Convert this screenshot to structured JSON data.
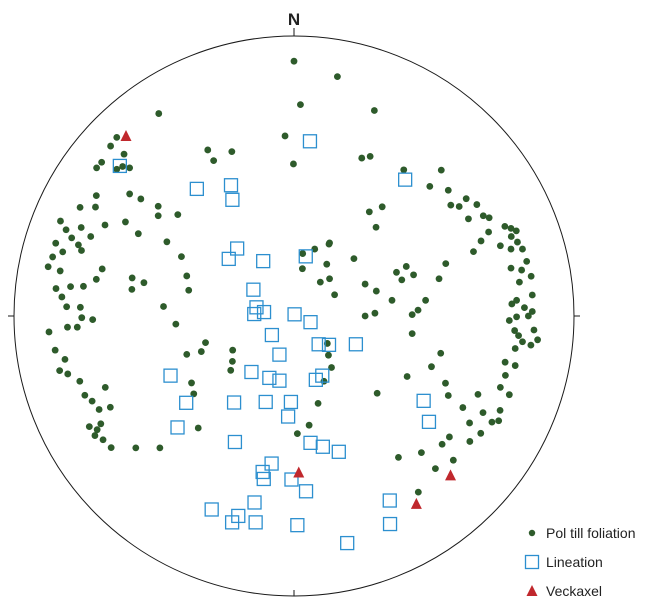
{
  "chart_data": {
    "type": "scatter",
    "title": "",
    "north_label": "N",
    "projection": "equal-area lower hemisphere stereonet",
    "coordinate_note": "x = east, y = north, both normalized to primitive circle radius 1",
    "xlim": [
      -1,
      1
    ],
    "ylim": [
      -1,
      1
    ],
    "grid": false,
    "legend_position": "bottom-right",
    "series": [
      {
        "name": "Pol till foliation",
        "marker": "filled-circle",
        "color": "#2e5b2b",
        "points": [
          [
            0.0,
            0.91
          ],
          [
            0.155,
            0.855
          ],
          [
            0.287,
            0.734
          ],
          [
            0.272,
            0.57
          ],
          [
            0.023,
            0.755
          ],
          [
            -0.032,
            0.643
          ],
          [
            -0.483,
            0.723
          ],
          [
            -0.633,
            0.638
          ],
          [
            -0.655,
            0.607
          ],
          [
            -0.607,
            0.578
          ],
          [
            -0.687,
            0.549
          ],
          [
            -0.705,
            0.529
          ],
          [
            -0.633,
            0.524
          ],
          [
            -0.308,
            0.593
          ],
          [
            -0.222,
            0.587
          ],
          [
            -0.287,
            0.555
          ],
          [
            -0.002,
            0.543
          ],
          [
            0.242,
            0.564
          ],
          [
            0.392,
            0.522
          ],
          [
            0.526,
            0.521
          ],
          [
            0.485,
            0.463
          ],
          [
            0.551,
            0.449
          ],
          [
            0.56,
            0.396
          ],
          [
            0.59,
            0.391
          ],
          [
            0.615,
            0.419
          ],
          [
            0.623,
            0.347
          ],
          [
            0.653,
            0.398
          ],
          [
            0.676,
            0.358
          ],
          [
            0.697,
            0.351
          ],
          [
            0.695,
            0.3
          ],
          [
            0.753,
            0.32
          ],
          [
            0.775,
            0.313
          ],
          [
            0.794,
            0.304
          ],
          [
            0.737,
            0.251
          ],
          [
            0.668,
            0.268
          ],
          [
            0.641,
            0.23
          ],
          [
            0.776,
            0.284
          ],
          [
            0.798,
            0.264
          ],
          [
            0.775,
            0.239
          ],
          [
            0.816,
            0.239
          ],
          [
            0.831,
            0.195
          ],
          [
            0.813,
            0.164
          ],
          [
            0.775,
            0.171
          ],
          [
            0.847,
            0.142
          ],
          [
            0.805,
            0.121
          ],
          [
            0.851,
            0.075
          ],
          [
            0.795,
            0.056
          ],
          [
            0.823,
            0.03
          ],
          [
            0.851,
            0.016
          ],
          [
            0.837,
            0.0
          ],
          [
            0.778,
            0.043
          ],
          [
            0.795,
            -0.003
          ],
          [
            0.769,
            -0.016
          ],
          [
            0.788,
            -0.052
          ],
          [
            0.802,
            -0.07
          ],
          [
            0.857,
            -0.05
          ],
          [
            0.87,
            -0.085
          ],
          [
            0.816,
            -0.092
          ],
          [
            0.846,
            -0.104
          ],
          [
            0.79,
            -0.116
          ],
          [
            0.754,
            -0.165
          ],
          [
            0.79,
            -0.177
          ],
          [
            0.755,
            -0.212
          ],
          [
            0.737,
            -0.255
          ],
          [
            0.769,
            -0.281
          ],
          [
            0.736,
            -0.337
          ],
          [
            0.731,
            -0.374
          ],
          [
            0.707,
            -0.379
          ],
          [
            0.627,
            -0.382
          ],
          [
            0.675,
            -0.345
          ],
          [
            0.657,
            -0.28
          ],
          [
            0.551,
            -0.284
          ],
          [
            0.541,
            -0.24
          ],
          [
            0.603,
            -0.327
          ],
          [
            0.667,
            -0.419
          ],
          [
            0.628,
            -0.448
          ],
          [
            0.555,
            -0.432
          ],
          [
            0.529,
            -0.458
          ],
          [
            0.455,
            -0.488
          ],
          [
            0.373,
            -0.505
          ],
          [
            0.569,
            -0.515
          ],
          [
            0.505,
            -0.545
          ],
          [
            0.444,
            -0.629
          ],
          [
            0.542,
            0.187
          ],
          [
            0.518,
            0.133
          ],
          [
            0.47,
            0.056
          ],
          [
            0.443,
            0.021
          ],
          [
            0.422,
            0.005
          ],
          [
            0.422,
            -0.063
          ],
          [
            0.524,
            -0.133
          ],
          [
            0.491,
            -0.181
          ],
          [
            0.404,
            -0.216
          ],
          [
            0.297,
            -0.276
          ],
          [
            0.35,
            0.056
          ],
          [
            0.294,
            0.089
          ],
          [
            0.366,
            0.156
          ],
          [
            0.401,
            0.177
          ],
          [
            0.427,
            0.147
          ],
          [
            0.385,
            0.129
          ],
          [
            0.254,
            0.114
          ],
          [
            0.214,
            0.205
          ],
          [
            0.125,
            0.257
          ],
          [
            0.074,
            0.239
          ],
          [
            0.031,
            0.223
          ],
          [
            0.03,
            0.169
          ],
          [
            0.269,
            0.372
          ],
          [
            0.315,
            0.39
          ],
          [
            0.293,
            0.317
          ],
          [
            0.127,
            0.261
          ],
          [
            0.117,
            0.185
          ],
          [
            0.127,
            0.133
          ],
          [
            0.094,
            0.121
          ],
          [
            0.145,
            0.076
          ],
          [
            0.254,
            0.0
          ],
          [
            0.289,
            0.01
          ],
          [
            0.119,
            -0.098
          ],
          [
            0.123,
            -0.14
          ],
          [
            0.134,
            -0.184
          ],
          [
            0.107,
            -0.233
          ],
          [
            0.086,
            -0.312
          ],
          [
            0.054,
            -0.39
          ],
          [
            0.012,
            -0.42
          ],
          [
            -0.22,
            -0.162
          ],
          [
            -0.226,
            -0.194
          ],
          [
            -0.358,
            -0.278
          ],
          [
            -0.366,
            -0.239
          ],
          [
            -0.383,
            -0.137
          ],
          [
            -0.331,
            -0.127
          ],
          [
            -0.316,
            -0.095
          ],
          [
            -0.219,
            -0.122
          ],
          [
            -0.342,
            -0.4
          ],
          [
            -0.479,
            -0.471
          ],
          [
            -0.565,
            -0.471
          ],
          [
            -0.653,
            -0.47
          ],
          [
            -0.682,
            -0.442
          ],
          [
            -0.711,
            -0.427
          ],
          [
            -0.703,
            -0.406
          ],
          [
            -0.69,
            -0.385
          ],
          [
            -0.731,
            -0.395
          ],
          [
            -0.696,
            -0.334
          ],
          [
            -0.656,
            -0.326
          ],
          [
            -0.721,
            -0.304
          ],
          [
            -0.674,
            -0.255
          ],
          [
            -0.747,
            -0.283
          ],
          [
            -0.765,
            -0.233
          ],
          [
            -0.808,
            -0.207
          ],
          [
            -0.837,
            -0.195
          ],
          [
            -0.818,
            -0.155
          ],
          [
            -0.853,
            -0.122
          ],
          [
            -0.875,
            -0.057
          ],
          [
            -0.809,
            -0.04
          ],
          [
            -0.774,
            -0.04
          ],
          [
            -0.758,
            -0.006
          ],
          [
            -0.719,
            -0.013
          ],
          [
            -0.763,
            0.031
          ],
          [
            -0.812,
            0.033
          ],
          [
            -0.829,
            0.068
          ],
          [
            -0.85,
            0.098
          ],
          [
            -0.798,
            0.105
          ],
          [
            -0.752,
            0.106
          ],
          [
            -0.706,
            0.131
          ],
          [
            -0.685,
            0.168
          ],
          [
            -0.835,
            0.161
          ],
          [
            -0.878,
            0.176
          ],
          [
            -0.862,
            0.211
          ],
          [
            -0.826,
            0.229
          ],
          [
            -0.851,
            0.26
          ],
          [
            -0.759,
            0.234
          ],
          [
            -0.794,
            0.279
          ],
          [
            -0.814,
            0.308
          ],
          [
            -0.834,
            0.339
          ],
          [
            -0.76,
            0.316
          ],
          [
            -0.675,
            0.325
          ],
          [
            -0.602,
            0.336
          ],
          [
            -0.556,
            0.294
          ],
          [
            -0.578,
            0.136
          ],
          [
            -0.579,
            0.095
          ],
          [
            -0.536,
            0.119
          ],
          [
            -0.466,
            0.034
          ],
          [
            -0.422,
            -0.029
          ],
          [
            -0.376,
            0.092
          ],
          [
            -0.383,
            0.143
          ],
          [
            -0.402,
            0.212
          ],
          [
            -0.454,
            0.265
          ],
          [
            -0.415,
            0.362
          ],
          [
            -0.485,
            0.358
          ],
          [
            -0.485,
            0.392
          ],
          [
            -0.547,
            0.418
          ],
          [
            -0.587,
            0.529
          ],
          [
            -0.612,
            0.534
          ],
          [
            -0.587,
            0.436
          ],
          [
            -0.706,
            0.43
          ],
          [
            -0.709,
            0.389
          ],
          [
            -0.764,
            0.388
          ],
          [
            -0.726,
            0.284
          ],
          [
            -0.77,
            0.254
          ]
        ]
      },
      {
        "name": "Lineation",
        "marker": "open-square",
        "color": "#2c8fcf",
        "points": [
          [
            -0.622,
            0.536
          ],
          [
            0.057,
            0.624
          ],
          [
            0.397,
            0.487
          ],
          [
            -0.347,
            0.454
          ],
          [
            -0.225,
            0.467
          ],
          [
            -0.22,
            0.415
          ],
          [
            -0.203,
            0.241
          ],
          [
            -0.233,
            0.204
          ],
          [
            -0.11,
            0.196
          ],
          [
            0.042,
            0.213
          ],
          [
            -0.145,
            0.094
          ],
          [
            -0.134,
            0.031
          ],
          [
            -0.107,
            0.014
          ],
          [
            -0.142,
            0.007
          ],
          [
            0.002,
            0.006
          ],
          [
            0.059,
            -0.022
          ],
          [
            -0.079,
            -0.068
          ],
          [
            0.088,
            -0.101
          ],
          [
            0.125,
            -0.103
          ],
          [
            0.221,
            -0.101
          ],
          [
            -0.052,
            -0.138
          ],
          [
            -0.152,
            -0.2
          ],
          [
            -0.088,
            -0.221
          ],
          [
            -0.052,
            -0.231
          ],
          [
            0.078,
            -0.228
          ],
          [
            0.101,
            -0.213
          ],
          [
            -0.441,
            -0.213
          ],
          [
            -0.385,
            -0.31
          ],
          [
            -0.214,
            -0.309
          ],
          [
            -0.101,
            -0.307
          ],
          [
            -0.011,
            -0.307
          ],
          [
            -0.021,
            -0.359
          ],
          [
            -0.416,
            -0.398
          ],
          [
            -0.211,
            -0.45
          ],
          [
            0.059,
            -0.453
          ],
          [
            0.103,
            -0.467
          ],
          [
            0.16,
            -0.485
          ],
          [
            -0.08,
            -0.527
          ],
          [
            -0.112,
            -0.557
          ],
          [
            -0.108,
            -0.582
          ],
          [
            -0.009,
            -0.584
          ],
          [
            0.043,
            -0.626
          ],
          [
            -0.141,
            -0.666
          ],
          [
            -0.294,
            -0.691
          ],
          [
            -0.199,
            -0.714
          ],
          [
            -0.221,
            -0.737
          ],
          [
            -0.137,
            -0.737
          ],
          [
            0.012,
            -0.747
          ],
          [
            0.342,
            -0.659
          ],
          [
            0.343,
            -0.743
          ],
          [
            0.19,
            -0.811
          ],
          [
            0.463,
            -0.303
          ],
          [
            0.482,
            -0.378
          ]
        ]
      },
      {
        "name": "Veckaxel",
        "marker": "filled-triangle",
        "color": "#c0282d",
        "points": [
          [
            -0.6,
            0.643
          ],
          [
            0.017,
            -0.559
          ],
          [
            0.559,
            -0.569
          ],
          [
            0.437,
            -0.671
          ]
        ]
      }
    ]
  }
}
